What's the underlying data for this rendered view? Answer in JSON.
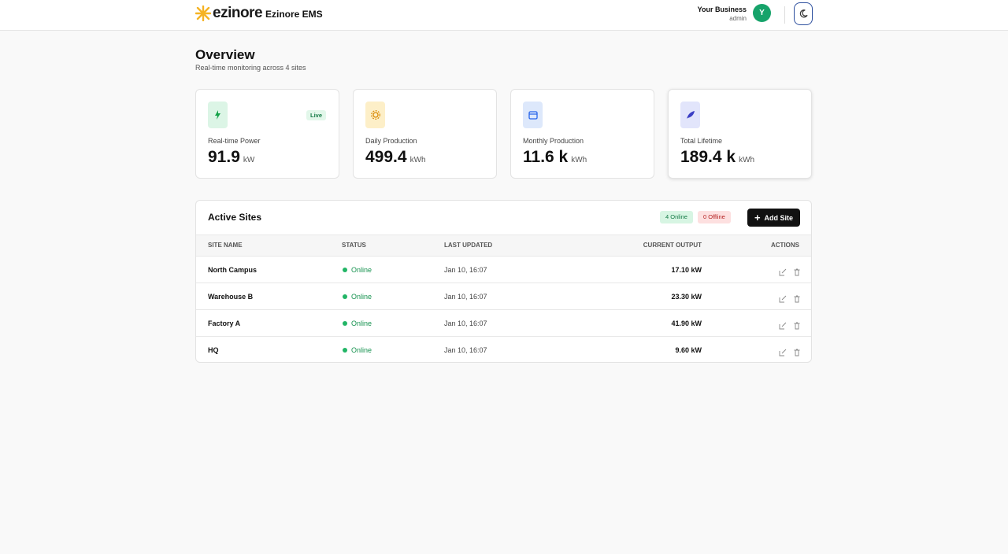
{
  "header": {
    "logo": "ezinore",
    "app_name": "Ezinore EMS",
    "user_name": "Your Business",
    "user_role": "admin",
    "avatar": "Y"
  },
  "page": {
    "title": "Overview",
    "subtitle": "Real-time monitoring across 4 sites"
  },
  "cards": [
    {
      "label": "Real-time Power",
      "value": "91.9",
      "unit": "kW",
      "badge": "Live"
    },
    {
      "label": "Daily Production",
      "value": "499.4",
      "unit": "kWh"
    },
    {
      "label": "Monthly Production",
      "value": "11.6 k",
      "unit": "kWh"
    },
    {
      "label": "Total Lifetime",
      "value": "189.4 k",
      "unit": "kWh"
    }
  ],
  "sites": {
    "title": "Active Sites",
    "online": "4 Online",
    "offline": "0 Offline",
    "add_button": "Add Site",
    "columns": [
      "SITE NAME",
      "STATUS",
      "LAST UPDATED",
      "CURRENT OUTPUT",
      "ACTIONS"
    ],
    "rows": [
      [
        "North Campus",
        "Online",
        "Jan 10, 16:07",
        "17.10 kW"
      ],
      [
        "Warehouse B",
        "Online",
        "Jan 10, 16:07",
        "23.30 kW"
      ],
      [
        "Factory A",
        "Online",
        "Jan 10, 16:07",
        "41.90 kW"
      ],
      [
        "HQ",
        "Online",
        "Jan 10, 16:07",
        "9.60 kW"
      ]
    ]
  }
}
